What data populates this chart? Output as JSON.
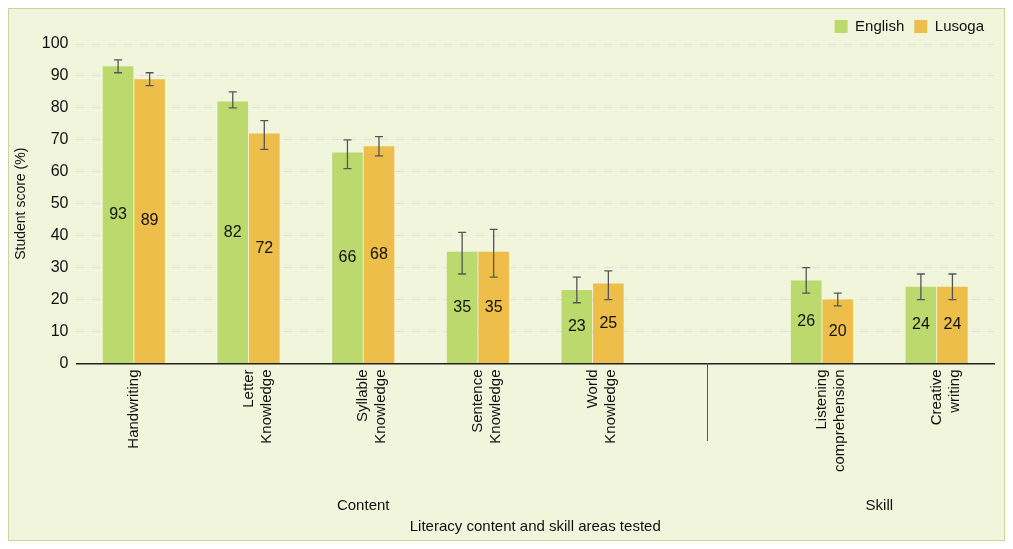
{
  "chart_data": {
    "type": "bar",
    "categories": [
      "Handwriting",
      "Letter Knowledge",
      "Syllable Knowledge",
      "Sentence Knowledge",
      "World Knowledge",
      null,
      "Listening comprehension",
      "Creative writing"
    ],
    "series": [
      {
        "name": "English",
        "color": "#bcd96e",
        "values": [
          93,
          82,
          66,
          35,
          23,
          null,
          26,
          24
        ],
        "errors": [
          [
            91,
            95
          ],
          [
            80,
            85
          ],
          [
            61,
            70
          ],
          [
            28,
            41
          ],
          [
            19,
            27
          ],
          null,
          [
            22,
            30
          ],
          [
            20,
            28
          ]
        ]
      },
      {
        "name": "Lusoga",
        "color": "#edbe4a",
        "values": [
          89,
          72,
          68,
          35,
          25,
          null,
          20,
          24
        ],
        "errors": [
          [
            87,
            91
          ],
          [
            67,
            76
          ],
          [
            65,
            71
          ],
          [
            27,
            42
          ],
          [
            20,
            29
          ],
          null,
          [
            18,
            22
          ],
          [
            20,
            28
          ]
        ]
      }
    ],
    "ylabel": "Student score (%)",
    "xlabel": "Literacy content and skill areas tested",
    "annotations": [
      "Content",
      "Skill"
    ],
    "ylim": [
      0,
      100
    ],
    "yticks": [
      0,
      10,
      20,
      30,
      40,
      50,
      60,
      70,
      80,
      90,
      100
    ],
    "grid": "y",
    "legend": "top right",
    "data_labels": true
  }
}
